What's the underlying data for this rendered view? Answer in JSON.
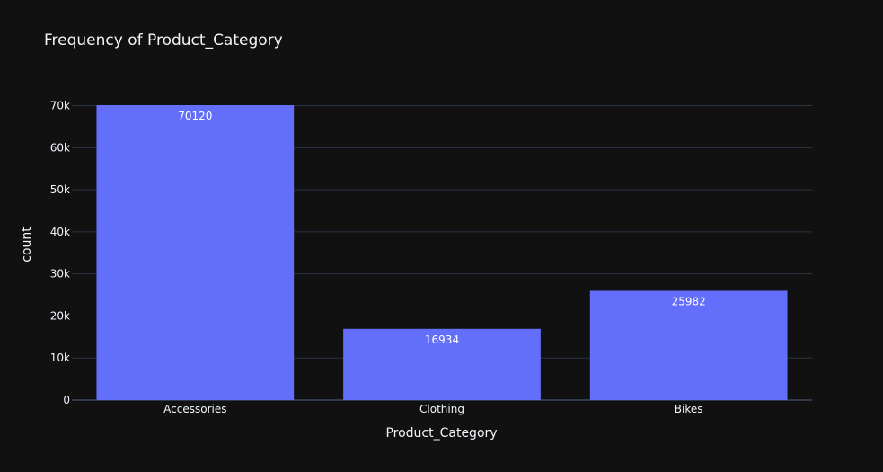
{
  "chart_data": {
    "type": "bar",
    "title": "Frequency of Product_Category",
    "xlabel": "Product_Category",
    "ylabel": "count",
    "categories": [
      "Accessories",
      "Clothing",
      "Bikes"
    ],
    "values": [
      70120,
      16934,
      25982
    ],
    "data_labels": [
      "70120",
      "16934",
      "25982"
    ],
    "ylim": [
      0,
      70120
    ],
    "yticks": [
      0,
      10000,
      20000,
      30000,
      40000,
      50000,
      60000,
      70000
    ],
    "ytick_labels": [
      "0",
      "10k",
      "20k",
      "30k",
      "40k",
      "50k",
      "60k",
      "70k"
    ],
    "grid": true,
    "legend": "none",
    "colors": {
      "background": "#111111",
      "plot_background": "#111111",
      "bar": "#636efa",
      "grid": "#283442",
      "text": "#f2f5fa",
      "data_label": "#ffffff"
    }
  }
}
